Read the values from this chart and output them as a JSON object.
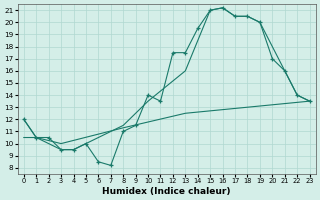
{
  "title": "",
  "xlabel": "Humidex (Indice chaleur)",
  "bg_color": "#d4eee8",
  "grid_color": "#b0d8d0",
  "line_color": "#1a7a6a",
  "xlim": [
    -0.5,
    23.5
  ],
  "ylim": [
    7.5,
    21.5
  ],
  "xticks": [
    0,
    1,
    2,
    3,
    4,
    5,
    6,
    7,
    8,
    9,
    10,
    11,
    12,
    13,
    14,
    15,
    16,
    17,
    18,
    19,
    20,
    21,
    22,
    23
  ],
  "yticks": [
    8,
    9,
    10,
    11,
    12,
    13,
    14,
    15,
    16,
    17,
    18,
    19,
    20,
    21
  ],
  "line1_x": [
    0,
    1,
    2,
    3,
    4,
    5,
    6,
    7,
    8,
    9,
    10,
    11,
    12,
    13,
    14,
    15,
    16,
    17,
    18,
    19,
    20,
    21,
    22,
    23
  ],
  "line1_y": [
    12.0,
    10.5,
    10.5,
    9.5,
    9.5,
    10.0,
    8.5,
    8.2,
    11.0,
    11.5,
    14.0,
    13.5,
    17.5,
    17.5,
    19.5,
    21.0,
    21.2,
    20.5,
    20.5,
    20.0,
    17.0,
    16.0,
    14.0,
    13.5
  ],
  "line2_x": [
    0,
    1,
    3,
    4,
    5,
    8,
    10,
    13,
    15,
    16,
    17,
    18,
    19,
    22,
    23
  ],
  "line2_y": [
    12.0,
    10.5,
    9.5,
    9.5,
    10.0,
    11.5,
    13.5,
    16.0,
    21.0,
    21.2,
    20.5,
    20.5,
    20.0,
    14.0,
    13.5
  ],
  "line3_x": [
    0,
    1,
    3,
    8,
    13,
    18,
    23
  ],
  "line3_y": [
    10.5,
    10.5,
    10.0,
    11.3,
    12.5,
    13.0,
    13.5
  ]
}
